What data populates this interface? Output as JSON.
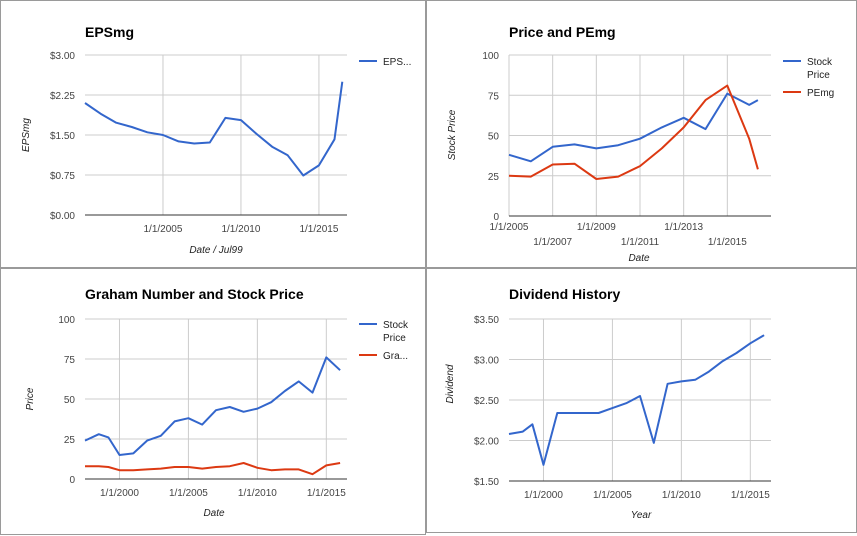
{
  "chart_data": [
    {
      "type": "line",
      "title": "EPSmg",
      "xlabel": "Date / Jul99",
      "ylabel": "EPSmg",
      "ylim": [
        0,
        3
      ],
      "yticks": [
        "$0.00",
        "$0.75",
        "$1.50",
        "$2.25",
        "$3.00"
      ],
      "ytick_values": [
        0,
        0.75,
        1.5,
        2.25,
        3.0
      ],
      "xlim": [
        2000.0,
        2016.8
      ],
      "xticks": [
        "1/1/2005",
        "1/1/2010",
        "1/1/2015"
      ],
      "xtick_values": [
        2005,
        2010,
        2015
      ],
      "legend_position": "right",
      "legend": [
        "EPS..."
      ],
      "colors": {
        "eps": "#3366cc",
        "grid": "#cccccc",
        "axis": "#333333"
      },
      "series": [
        {
          "name": "EPS...",
          "x": [
            2000.0,
            2001.0,
            2002.0,
            2003.0,
            2004.0,
            2005.0,
            2006.0,
            2007.0,
            2008.0,
            2009.0,
            2010.0,
            2011.0,
            2012.0,
            2013.0,
            2014.0,
            2015.0,
            2016.0,
            2016.5
          ],
          "values": [
            2.1,
            1.9,
            1.73,
            1.65,
            1.55,
            1.5,
            1.38,
            1.34,
            1.36,
            1.82,
            1.78,
            1.52,
            1.28,
            1.12,
            0.74,
            0.93,
            1.42,
            2.5
          ]
        }
      ]
    },
    {
      "type": "line",
      "title": "Price and PEmg",
      "xlabel": "Date",
      "ylabel": "Stock Price",
      "ylim": [
        0,
        100
      ],
      "yticks": [
        "0",
        "25",
        "50",
        "75",
        "100"
      ],
      "ytick_values": [
        0,
        25,
        50,
        75,
        100
      ],
      "xlim": [
        2005.0,
        2017.0
      ],
      "xticks_upper": [
        "1/1/2005",
        "1/1/2009",
        "1/1/2013"
      ],
      "xticks_upper_values": [
        2005,
        2009,
        2013
      ],
      "xticks_lower": [
        "1/1/2007",
        "1/1/2011",
        "1/1/2015"
      ],
      "xticks_lower_values": [
        2007,
        2011,
        2015
      ],
      "legend_position": "right",
      "legend": [
        "Stock Price",
        "PEmg"
      ],
      "colors": {
        "price": "#3366cc",
        "pe": "#dc3912",
        "grid": "#cccccc",
        "axis": "#333333"
      },
      "series": [
        {
          "name": "Stock Price",
          "x": [
            2005.0,
            2006.0,
            2007.0,
            2008.0,
            2009.0,
            2010.0,
            2011.0,
            2012.0,
            2013.0,
            2014.0,
            2015.0,
            2016.0,
            2016.4
          ],
          "values": [
            38,
            34,
            43,
            44.5,
            42,
            44,
            48,
            55,
            61,
            54,
            76,
            69,
            72
          ]
        },
        {
          "name": "PEmg",
          "x": [
            2005.0,
            2006.0,
            2007.0,
            2008.0,
            2009.0,
            2010.0,
            2011.0,
            2012.0,
            2013.0,
            2014.0,
            2015.0,
            2016.0,
            2016.4
          ],
          "values": [
            25,
            24.5,
            32,
            32.5,
            23,
            24.5,
            31,
            42,
            55,
            72,
            81,
            48,
            29
          ]
        }
      ]
    },
    {
      "type": "line",
      "title": "Graham Number and Stock Price",
      "xlabel": "Date",
      "ylabel": "Price",
      "ylim": [
        0,
        100
      ],
      "yticks": [
        "0",
        "25",
        "50",
        "75",
        "100"
      ],
      "ytick_values": [
        0,
        25,
        50,
        75,
        100
      ],
      "xlim": [
        1997.5,
        2016.5
      ],
      "xticks": [
        "1/1/2000",
        "1/1/2005",
        "1/1/2010",
        "1/1/2015"
      ],
      "xtick_values": [
        2000,
        2005,
        2010,
        2015
      ],
      "legend_position": "right",
      "legend": [
        "Stock Price",
        "Gra..."
      ],
      "colors": {
        "price": "#3366cc",
        "graham": "#dc3912",
        "grid": "#cccccc",
        "axis": "#333333"
      },
      "series": [
        {
          "name": "Stock Price",
          "x": [
            1997.5,
            1998.5,
            1999.2,
            2000.0,
            2001.0,
            2002.0,
            2003.0,
            2004.0,
            2005.0,
            2006.0,
            2007.0,
            2008.0,
            2009.0,
            2010.0,
            2011.0,
            2012.0,
            2013.0,
            2014.0,
            2015.0,
            2016.0
          ],
          "values": [
            24,
            28,
            26,
            15,
            16,
            24,
            27,
            36,
            38,
            34,
            43,
            45,
            42,
            44,
            48,
            55,
            61,
            54,
            76,
            68
          ]
        },
        {
          "name": "Gra...",
          "x": [
            1997.5,
            1998.5,
            1999.2,
            2000.0,
            2001.0,
            2002.0,
            2003.0,
            2004.0,
            2005.0,
            2006.0,
            2007.0,
            2008.0,
            2009.0,
            2010.0,
            2011.0,
            2012.0,
            2013.0,
            2014.0,
            2015.0,
            2016.0
          ],
          "values": [
            8,
            8,
            7.5,
            5.5,
            5.5,
            6,
            6.5,
            7.5,
            7.5,
            6.5,
            7.5,
            8,
            10,
            7,
            5.5,
            6,
            6,
            3,
            8.5,
            10
          ]
        }
      ]
    },
    {
      "type": "line",
      "title": "Dividend History",
      "xlabel": "Year",
      "ylabel": "Dividend",
      "ylim": [
        1.5,
        3.5
      ],
      "yticks": [
        "$1.50",
        "$2.00",
        "$2.50",
        "$3.00",
        "$3.50"
      ],
      "ytick_values": [
        1.5,
        2.0,
        2.5,
        3.0,
        3.5
      ],
      "xlim": [
        1997.5,
        2016.5
      ],
      "xticks": [
        "1/1/2000",
        "1/1/2005",
        "1/1/2010",
        "1/1/2015"
      ],
      "xtick_values": [
        2000,
        2005,
        2010,
        2015
      ],
      "colors": {
        "dividend": "#3366cc",
        "grid": "#cccccc",
        "axis": "#333333"
      },
      "series": [
        {
          "x": [
            1997.5,
            1998.5,
            1999.2,
            2000.0,
            2001.0,
            2002.0,
            2003.0,
            2004.0,
            2005.0,
            2006.0,
            2007.0,
            2008.0,
            2009.0,
            2010.0,
            2011.0,
            2012.0,
            2013.0,
            2014.0,
            2015.0,
            2016.0
          ],
          "values": [
            2.08,
            2.11,
            2.2,
            1.7,
            2.34,
            2.34,
            2.34,
            2.34,
            2.4,
            2.46,
            2.55,
            1.97,
            2.7,
            2.73,
            2.75,
            2.85,
            2.98,
            3.08,
            3.2,
            3.3
          ]
        }
      ]
    }
  ]
}
